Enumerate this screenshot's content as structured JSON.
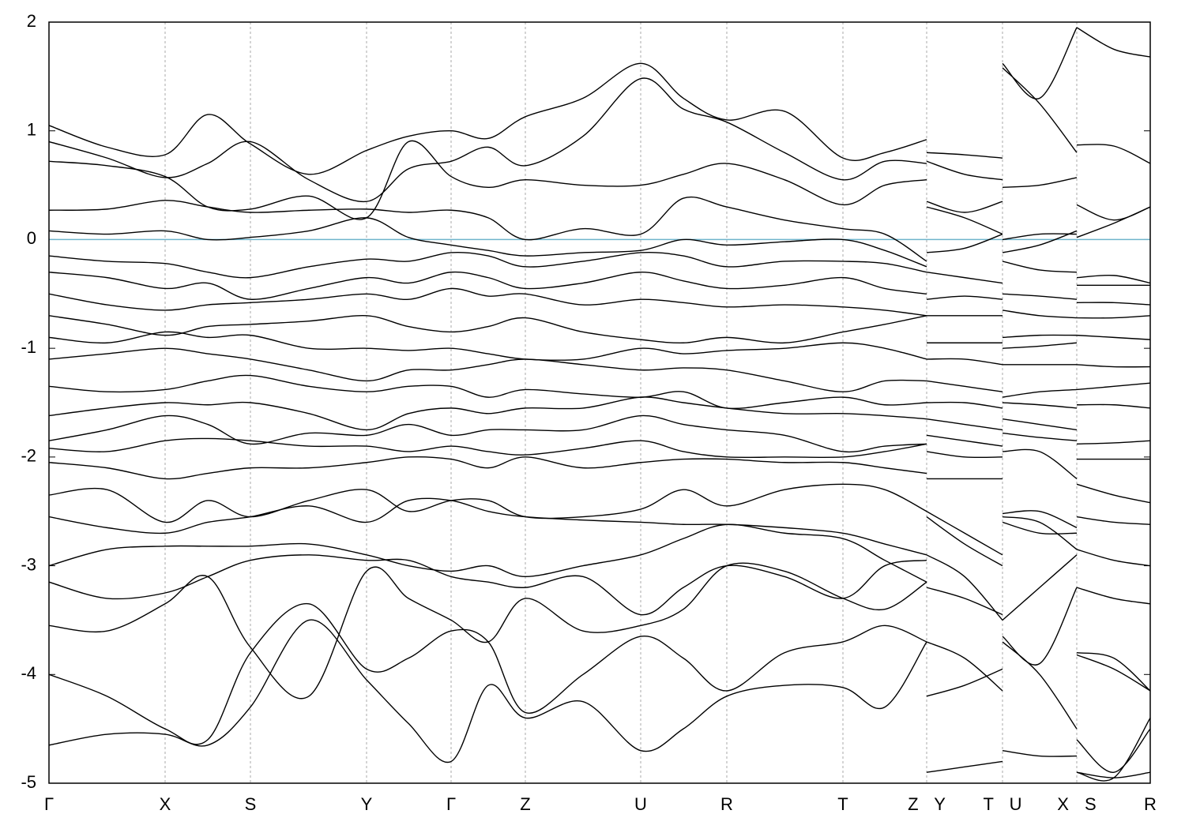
{
  "chart_data": {
    "type": "line",
    "xlim": [
      0,
      13.94
    ],
    "ylim": [
      -5,
      2
    ],
    "yticks": [
      2,
      1,
      0,
      -1,
      -2,
      -3,
      -4,
      -5
    ],
    "xticks": [
      {
        "value": 0,
        "label": "Γ"
      },
      {
        "value": 1.47,
        "label": "X"
      },
      {
        "value": 2.55,
        "label": "S"
      },
      {
        "value": 4.02,
        "label": "Y"
      },
      {
        "value": 5.09,
        "label": "Γ"
      },
      {
        "value": 6.03,
        "label": "Z"
      },
      {
        "value": 7.49,
        "label": "U"
      },
      {
        "value": 8.58,
        "label": "R"
      },
      {
        "value": 10.05,
        "label": "T"
      },
      {
        "value": 11.11,
        "label": "Z Y"
      },
      {
        "value": 12.07,
        "label": "T U"
      },
      {
        "value": 13.01,
        "label": "X S"
      },
      {
        "value": 13.94,
        "label": "R"
      }
    ],
    "grid": true,
    "hline": {
      "value": 0,
      "color": "#6fb4cc"
    },
    "color": "#000000",
    "x": [
      0,
      0.735,
      1.47,
      2.01,
      2.55,
      3.29,
      4.02,
      4.55,
      5.09,
      5.56,
      6.03,
      6.76,
      7.49,
      8.03,
      8.58,
      9.31,
      10.05,
      10.58,
      11.11,
      11.11,
      11.11,
      11.59,
      12.07,
      12.07,
      12.07,
      12.54,
      13.01,
      13.01,
      13.01,
      13.48,
      13.94
    ],
    "series": [
      {
        "values": [
          1.05,
          0.85,
          0.78,
          1.15,
          0.88,
          0.6,
          0.82,
          0.95,
          1.0,
          0.93,
          1.13,
          1.3,
          1.62,
          1.3,
          1.1,
          1.18,
          0.75,
          0.8,
          0.92,
          null,
          0.8,
          0.78,
          0.75,
          null,
          1.62,
          1.3,
          1.95,
          null,
          1.95,
          1.75,
          1.68
        ]
      },
      {
        "values": [
          0.9,
          0.75,
          0.57,
          0.7,
          0.9,
          0.55,
          0.35,
          0.65,
          0.72,
          0.85,
          0.68,
          0.95,
          1.48,
          1.2,
          1.08,
          0.8,
          0.55,
          0.72,
          0.7,
          null,
          0.72,
          0.6,
          0.55,
          null,
          1.58,
          1.25,
          0.8,
          null,
          0.87,
          0.86,
          0.7
        ]
      },
      {
        "values": [
          0.72,
          0.68,
          0.58,
          0.3,
          0.28,
          0.4,
          0.2,
          0.9,
          0.58,
          0.48,
          0.55,
          0.5,
          0.5,
          0.6,
          0.7,
          0.55,
          0.32,
          0.5,
          0.55,
          null,
          0.35,
          0.25,
          0.35,
          null,
          0.48,
          0.5,
          0.57,
          null,
          0.32,
          0.18,
          0.3
        ]
      },
      {
        "values": [
          0.27,
          0.28,
          0.36,
          0.3,
          0.25,
          0.27,
          0.28,
          0.25,
          0.27,
          0.2,
          0.0,
          0.1,
          0.05,
          0.38,
          0.3,
          0.18,
          0.1,
          0.05,
          -0.2,
          null,
          0.3,
          0.2,
          0.05,
          null,
          0.0,
          0.05,
          0.05,
          null,
          0.02,
          0.15,
          0.3
        ]
      },
      {
        "values": [
          0.08,
          0.05,
          0.08,
          0.0,
          0.02,
          0.08,
          0.2,
          0.02,
          -0.05,
          -0.1,
          -0.15,
          -0.12,
          -0.1,
          0.0,
          -0.05,
          -0.02,
          0.0,
          -0.1,
          -0.25,
          null,
          -0.12,
          -0.08,
          0.05,
          null,
          -0.12,
          -0.05,
          0.08,
          null,
          -0.35,
          -0.33,
          -0.4
        ]
      },
      {
        "values": [
          -0.15,
          -0.2,
          -0.22,
          -0.3,
          -0.35,
          -0.25,
          -0.18,
          -0.2,
          -0.12,
          -0.15,
          -0.25,
          -0.2,
          -0.12,
          -0.15,
          -0.25,
          -0.2,
          -0.2,
          -0.22,
          -0.3,
          null,
          -0.3,
          -0.35,
          -0.4,
          null,
          -0.2,
          -0.28,
          -0.3,
          null,
          -0.42,
          -0.42,
          -0.42
        ]
      },
      {
        "values": [
          -0.3,
          -0.35,
          -0.45,
          -0.4,
          -0.55,
          -0.45,
          -0.35,
          -0.4,
          -0.3,
          -0.35,
          -0.45,
          -0.4,
          -0.3,
          -0.38,
          -0.45,
          -0.42,
          -0.35,
          -0.45,
          -0.5,
          null,
          -0.55,
          -0.52,
          -0.55,
          null,
          -0.5,
          -0.52,
          -0.55,
          null,
          -0.58,
          -0.58,
          -0.6
        ]
      },
      {
        "values": [
          -0.5,
          -0.6,
          -0.65,
          -0.6,
          -0.58,
          -0.55,
          -0.5,
          -0.55,
          -0.45,
          -0.52,
          -0.5,
          -0.6,
          -0.55,
          -0.58,
          -0.62,
          -0.6,
          -0.62,
          -0.65,
          -0.7,
          null,
          -0.7,
          -0.7,
          -0.7,
          null,
          -0.65,
          -0.7,
          -0.72,
          null,
          -0.72,
          -0.72,
          -0.7
        ]
      },
      {
        "values": [
          -0.7,
          -0.78,
          -0.88,
          -0.8,
          -0.78,
          -0.75,
          -0.7,
          -0.8,
          -0.85,
          -0.8,
          -0.72,
          -0.85,
          -0.92,
          -0.95,
          -0.9,
          -0.95,
          -0.85,
          -0.78,
          -0.7,
          null,
          -0.95,
          -0.95,
          -0.95,
          null,
          -0.9,
          -0.88,
          -0.88,
          null,
          -0.88,
          -0.9,
          -0.92
        ]
      },
      {
        "values": [
          -0.9,
          -0.95,
          -0.85,
          -0.9,
          -0.88,
          -1.0,
          -1.0,
          -1.02,
          -1.0,
          -1.05,
          -1.1,
          -1.1,
          -1.0,
          -1.05,
          -1.02,
          -1.0,
          -0.95,
          -1.0,
          -1.1,
          null,
          -1.1,
          -1.1,
          -1.15,
          null,
          -1.0,
          -0.98,
          -0.95,
          null,
          -1.15,
          -1.17,
          -1.17
        ]
      },
      {
        "values": [
          -1.1,
          -1.05,
          -1.0,
          -1.05,
          -1.1,
          -1.2,
          -1.3,
          -1.2,
          -1.2,
          -1.15,
          -1.1,
          -1.15,
          -1.2,
          -1.18,
          -1.2,
          -1.3,
          -1.4,
          -1.3,
          -1.3,
          null,
          -1.3,
          -1.35,
          -1.4,
          null,
          -1.15,
          -1.15,
          -1.15,
          null,
          -1.38,
          -1.35,
          -1.32
        ]
      },
      {
        "values": [
          -1.35,
          -1.4,
          -1.38,
          -1.3,
          -1.25,
          -1.35,
          -1.4,
          -1.35,
          -1.35,
          -1.45,
          -1.38,
          -1.42,
          -1.45,
          -1.4,
          -1.55,
          -1.5,
          -1.45,
          -1.52,
          -1.5,
          null,
          -1.5,
          -1.5,
          -1.55,
          null,
          -1.45,
          -1.4,
          -1.38,
          null,
          -1.52,
          -1.52,
          -1.55
        ]
      },
      {
        "values": [
          -1.62,
          -1.55,
          -1.5,
          -1.52,
          -1.5,
          -1.6,
          -1.75,
          -1.6,
          -1.55,
          -1.6,
          -1.55,
          -1.55,
          -1.45,
          -1.5,
          -1.55,
          -1.6,
          -1.6,
          -1.62,
          -1.65,
          null,
          -1.65,
          -1.7,
          -1.75,
          null,
          -1.5,
          -1.52,
          -1.55,
          null,
          -1.88,
          -1.87,
          -1.85
        ]
      },
      {
        "values": [
          -1.85,
          -1.75,
          -1.62,
          -1.7,
          -1.88,
          -1.78,
          -1.8,
          -1.7,
          -1.8,
          -1.75,
          -1.75,
          -1.75,
          -1.62,
          -1.7,
          -1.75,
          -1.8,
          -1.95,
          -1.9,
          -1.88,
          null,
          -1.8,
          -1.85,
          -1.9,
          null,
          -1.65,
          -1.7,
          -1.75,
          null,
          -2.02,
          -2.02,
          -2.02
        ]
      },
      {
        "values": [
          -1.92,
          -1.95,
          -1.85,
          -1.83,
          -1.85,
          -1.9,
          -1.9,
          -1.95,
          -1.9,
          -1.95,
          -1.98,
          -1.92,
          -1.85,
          -1.95,
          -2.0,
          -2.0,
          -2.0,
          -1.95,
          -1.88,
          null,
          -1.95,
          -2.0,
          -2.0,
          null,
          -1.78,
          -1.82,
          -1.85,
          null,
          -2.25,
          -2.35,
          -2.42
        ]
      },
      {
        "values": [
          -2.05,
          -2.1,
          -2.2,
          -2.15,
          -2.1,
          -2.1,
          -2.05,
          -2.0,
          -2.02,
          -2.1,
          -2.0,
          -2.1,
          -2.05,
          -2.02,
          -2.02,
          -2.05,
          -2.05,
          -2.1,
          -2.15,
          null,
          -2.2,
          -2.2,
          -2.2,
          null,
          -1.95,
          -1.95,
          -2.2,
          null,
          -2.55,
          -2.6,
          -2.62
        ]
      },
      {
        "values": [
          -2.35,
          -2.3,
          -2.6,
          -2.4,
          -2.55,
          -2.4,
          -2.3,
          -2.5,
          -2.4,
          -2.4,
          -2.55,
          -2.55,
          -2.48,
          -2.3,
          -2.45,
          -2.3,
          -2.25,
          -2.3,
          -2.5,
          null,
          -2.5,
          -2.7,
          -2.9,
          null,
          -2.52,
          -2.5,
          -2.65,
          null,
          -2.85,
          -2.95,
          -3.0
        ]
      },
      {
        "values": [
          -2.55,
          -2.65,
          -2.7,
          -2.6,
          -2.55,
          -2.45,
          -2.6,
          -2.4,
          -2.4,
          -2.5,
          -2.55,
          -2.58,
          -2.6,
          -2.62,
          -2.62,
          -2.65,
          -2.7,
          -2.8,
          -2.9,
          null,
          -2.55,
          -2.8,
          -3.0,
          null,
          -2.55,
          -2.6,
          -2.85,
          null,
          -3.8,
          -3.85,
          -4.15
        ]
      },
      {
        "values": [
          -3.0,
          -2.85,
          -2.82,
          -2.82,
          -2.82,
          -2.8,
          -2.9,
          -3.0,
          -3.05,
          -3.0,
          -3.1,
          -3.0,
          -2.9,
          -2.75,
          -2.62,
          -2.7,
          -2.75,
          -2.95,
          -3.15,
          null,
          -2.9,
          -3.1,
          -3.5,
          null,
          -2.6,
          -2.7,
          -2.7,
          null,
          -4.9,
          -4.95,
          -4.4
        ]
      },
      {
        "values": [
          -3.15,
          -3.3,
          -3.25,
          -3.1,
          -2.95,
          -2.9,
          -2.95,
          -2.95,
          -3.1,
          -3.15,
          -3.2,
          -3.1,
          -3.45,
          -3.2,
          -3.0,
          -3.1,
          -3.3,
          -3.0,
          -2.95,
          null,
          -3.2,
          -3.3,
          -3.45,
          null,
          -3.5,
          -3.2,
          -2.9,
          null,
          -3.2,
          -3.3,
          -3.35
        ]
      },
      {
        "values": [
          -3.55,
          -3.6,
          -3.35,
          -3.1,
          -3.75,
          -4.2,
          -3.05,
          -3.3,
          -3.5,
          -3.7,
          -3.3,
          -3.6,
          -3.55,
          -3.4,
          -3.0,
          -3.05,
          -3.3,
          -3.4,
          -3.15,
          null,
          -3.7,
          -3.85,
          -4.15,
          null,
          -3.65,
          -3.9,
          -3.2,
          null,
          -3.82,
          -3.95,
          -4.15
        ]
      },
      {
        "values": [
          -4.0,
          -4.2,
          -4.5,
          -4.6,
          -3.8,
          -3.35,
          -3.95,
          -3.85,
          -3.6,
          -3.7,
          -4.35,
          -4.0,
          -3.65,
          -3.85,
          -4.15,
          -3.8,
          -3.7,
          -3.55,
          -3.7,
          null,
          -4.2,
          -4.1,
          -3.95,
          null,
          -3.7,
          -4.0,
          -4.5,
          null,
          -4.6,
          -4.9,
          -4.5
        ]
      },
      {
        "values": [
          -4.65,
          -4.55,
          -4.55,
          -4.65,
          -4.3,
          -3.5,
          -4.05,
          -4.45,
          -4.8,
          -4.1,
          -4.4,
          -4.25,
          -4.7,
          -4.5,
          -4.2,
          -4.1,
          -4.12,
          -4.3,
          -3.7,
          null,
          -4.9,
          -4.85,
          -4.8,
          null,
          -4.7,
          -4.75,
          -4.75,
          null,
          -4.9,
          -4.95,
          -4.9
        ]
      }
    ]
  }
}
